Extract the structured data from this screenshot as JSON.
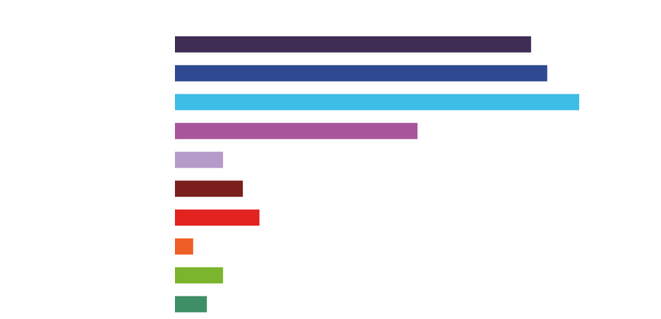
{
  "chart_data": {
    "type": "hbar",
    "categories": [
      null,
      null,
      null,
      null,
      null,
      null,
      null,
      null,
      null,
      null
    ],
    "values": [
      88.1,
      92.1,
      100,
      60,
      11.9,
      16.8,
      20.9,
      4.5,
      11.9,
      7.9
    ],
    "colors": [
      "#3f2d56",
      "#2f4a93",
      "#3cbde6",
      "#a9559b",
      "#b49bca",
      "#7a1f1c",
      "#e2231f",
      "#ef5f25",
      "#7ab52d",
      "#3f8f66"
    ],
    "xlim": [
      0,
      100
    ]
  }
}
